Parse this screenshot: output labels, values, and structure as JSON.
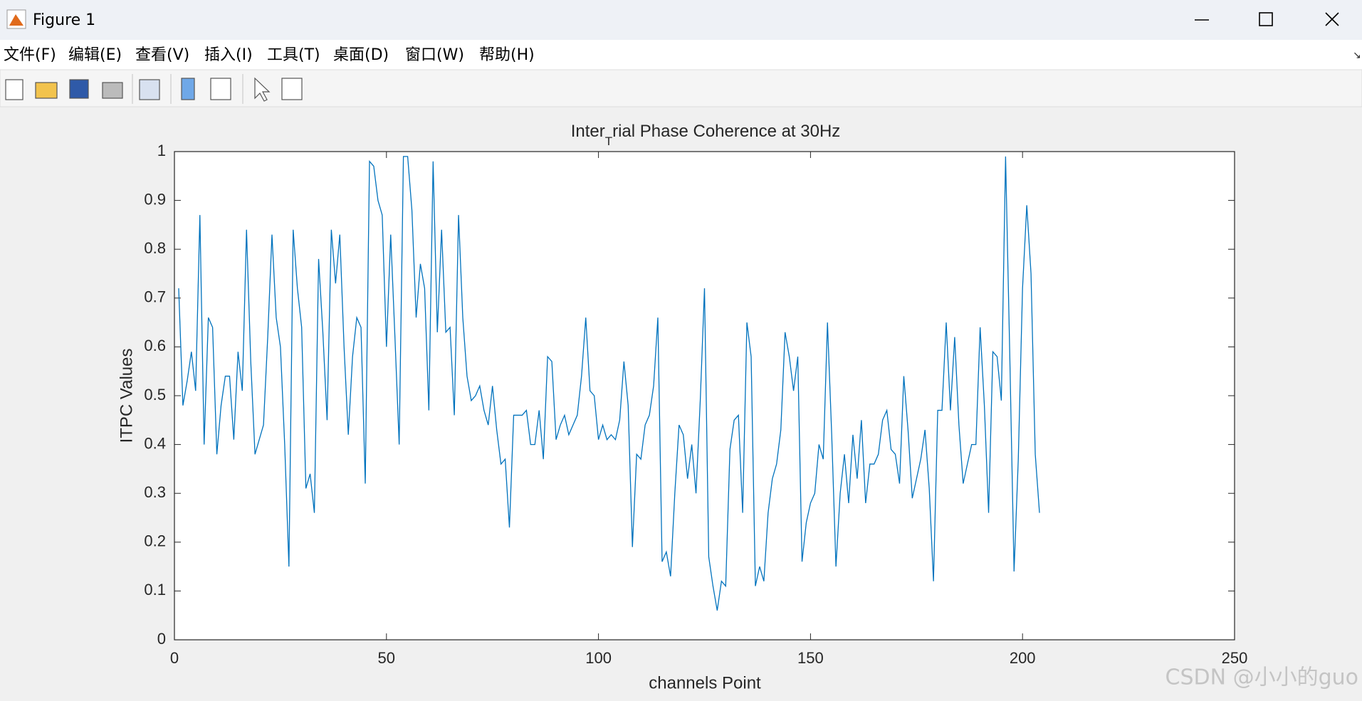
{
  "window": {
    "title": "Figure 1",
    "menu": [
      "文件(F)",
      "编辑(E)",
      "查看(V)",
      "插入(I)",
      "工具(T)",
      "桌面(D)",
      "窗口(W)",
      "帮助(H)"
    ]
  },
  "chart_data": {
    "type": "line",
    "title": [
      "Inter",
      "T",
      "rial Phase Coherence at 30Hz"
    ],
    "xlabel": "channels Point",
    "ylabel": "ITPC Values",
    "x": [
      1,
      2,
      3,
      4,
      5,
      6,
      7,
      8,
      9,
      10,
      11,
      12,
      13,
      14,
      15,
      16,
      17,
      18,
      19,
      20,
      21,
      22,
      23,
      24,
      25,
      26,
      27,
      28,
      29,
      30,
      31,
      32,
      33,
      34,
      35,
      36,
      37,
      38,
      39,
      40,
      41,
      42,
      43,
      44,
      45,
      46,
      47,
      48,
      49,
      50,
      51,
      52,
      53,
      54,
      55,
      56,
      57,
      58,
      59,
      60,
      61,
      62,
      63,
      64,
      65,
      66,
      67,
      68,
      69,
      70,
      71,
      72,
      73,
      74,
      75,
      76,
      77,
      78,
      79,
      80,
      81,
      82,
      83,
      84,
      85,
      86,
      87,
      88,
      89,
      90,
      91,
      92,
      93,
      94,
      95,
      96,
      97,
      98,
      99,
      100,
      101,
      102,
      103,
      104,
      105,
      106,
      107,
      108,
      109,
      110,
      111,
      112,
      113,
      114,
      115,
      116,
      117,
      118,
      119,
      120,
      121,
      122,
      123,
      124,
      125,
      126,
      127,
      128,
      129,
      130,
      131,
      132,
      133,
      134,
      135,
      136,
      137,
      138,
      139,
      140,
      141,
      142,
      143,
      144,
      145,
      146,
      147,
      148,
      149,
      150,
      151,
      152,
      153,
      154,
      155,
      156,
      157,
      158,
      159,
      160,
      161,
      162,
      163,
      164,
      165,
      166,
      167,
      168,
      169,
      170,
      171,
      172,
      173,
      174,
      175,
      176,
      177,
      178,
      179,
      180,
      181,
      182,
      183,
      184,
      185,
      186,
      187,
      188,
      189,
      190,
      191,
      192,
      193,
      194,
      195,
      196,
      197,
      198,
      199,
      200,
      201,
      202,
      203,
      204
    ],
    "series": [
      {
        "color": "#0072bd",
        "values": [
          0.72,
          0.48,
          0.53,
          0.59,
          0.51,
          0.87,
          0.4,
          0.66,
          0.64,
          0.38,
          0.48,
          0.54,
          0.54,
          0.41,
          0.59,
          0.51,
          0.84,
          0.57,
          0.38,
          0.41,
          0.44,
          0.62,
          0.83,
          0.66,
          0.6,
          0.4,
          0.15,
          0.84,
          0.72,
          0.64,
          0.31,
          0.34,
          0.26,
          0.78,
          0.63,
          0.45,
          0.84,
          0.73,
          0.83,
          0.6,
          0.42,
          0.58,
          0.66,
          0.64,
          0.32,
          0.98,
          0.97,
          0.9,
          0.87,
          0.6,
          0.83,
          0.62,
          0.4,
          0.99,
          0.99,
          0.88,
          0.66,
          0.77,
          0.72,
          0.47,
          0.98,
          0.63,
          0.84,
          0.63,
          0.64,
          0.46,
          0.87,
          0.66,
          0.54,
          0.49,
          0.5,
          0.52,
          0.47,
          0.44,
          0.52,
          0.43,
          0.36,
          0.37,
          0.23,
          0.46,
          0.46,
          0.46,
          0.47,
          0.4,
          0.4,
          0.47,
          0.37,
          0.58,
          0.57,
          0.41,
          0.44,
          0.46,
          0.42,
          0.44,
          0.46,
          0.54,
          0.66,
          0.51,
          0.5,
          0.41,
          0.44,
          0.41,
          0.42,
          0.41,
          0.45,
          0.57,
          0.48,
          0.19,
          0.38,
          0.37,
          0.44,
          0.46,
          0.52,
          0.66,
          0.16,
          0.18,
          0.13,
          0.3,
          0.44,
          0.42,
          0.33,
          0.4,
          0.3,
          0.49,
          0.72,
          0.17,
          0.11,
          0.06,
          0.12,
          0.11,
          0.39,
          0.45,
          0.46,
          0.26,
          0.65,
          0.58,
          0.11,
          0.15,
          0.12,
          0.26,
          0.33,
          0.36,
          0.43,
          0.63,
          0.58,
          0.51,
          0.58,
          0.16,
          0.24,
          0.28,
          0.3,
          0.4,
          0.37,
          0.65,
          0.42,
          0.15,
          0.3,
          0.38,
          0.28,
          0.42,
          0.33,
          0.45,
          0.28,
          0.36,
          0.36,
          0.38,
          0.45,
          0.47,
          0.39,
          0.38,
          0.32,
          0.54,
          0.43,
          0.29,
          0.33,
          0.37,
          0.43,
          0.31,
          0.12,
          0.47,
          0.47,
          0.65,
          0.47,
          0.62,
          0.44,
          0.32,
          0.36,
          0.4,
          0.4,
          0.64,
          0.48,
          0.26,
          0.59,
          0.58,
          0.49,
          0.99,
          0.58,
          0.14,
          0.37,
          0.72,
          0.89,
          0.75,
          0.38,
          0.26
        ]
      }
    ],
    "xlim": [
      0,
      250
    ],
    "xticks": [
      0,
      50,
      100,
      150,
      200,
      250
    ],
    "ylim": [
      0,
      1
    ],
    "yticks": [
      0,
      0.1,
      0.2,
      0.3,
      0.4,
      0.5,
      0.6,
      0.7,
      0.8,
      0.9,
      1
    ]
  },
  "watermark": "CSDN @小小的guo"
}
